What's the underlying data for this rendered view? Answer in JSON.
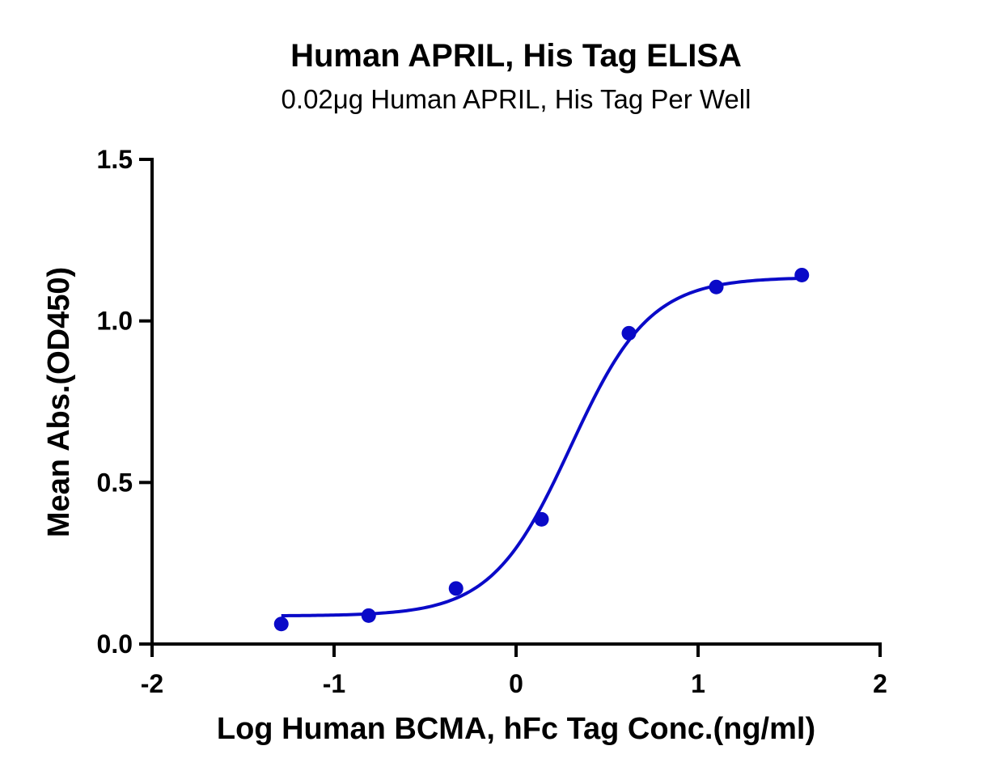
{
  "chart_data": {
    "type": "scatter",
    "title": "Human APRIL, His Tag ELISA",
    "subtitle": "0.02μg Human APRIL, His Tag Per Well",
    "xlabel": "Log Human BCMA, hFc Tag Conc.(ng/ml)",
    "ylabel": "Mean Abs.(OD450)",
    "xlim": [
      -2,
      2
    ],
    "ylim": [
      0,
      1.5
    ],
    "x_ticks": [
      "-2",
      "-1",
      "0",
      "1",
      "2"
    ],
    "y_ticks": [
      "0.0",
      "0.5",
      "1.0",
      "1.5"
    ],
    "grid": false,
    "color": "#0a0ac8",
    "series": [
      {
        "points": [
          {
            "x": -1.29,
            "y": 0.062
          },
          {
            "x": -0.81,
            "y": 0.088
          },
          {
            "x": -0.33,
            "y": 0.172
          },
          {
            "x": 0.14,
            "y": 0.386
          },
          {
            "x": 0.62,
            "y": 0.962
          },
          {
            "x": 1.1,
            "y": 1.105
          },
          {
            "x": 1.57,
            "y": 1.142
          }
        ],
        "fit": {
          "model": "4PL",
          "bottom": 0.087,
          "top": 1.135,
          "logEC50": 0.3,
          "hill": 2.0
        }
      }
    ]
  }
}
